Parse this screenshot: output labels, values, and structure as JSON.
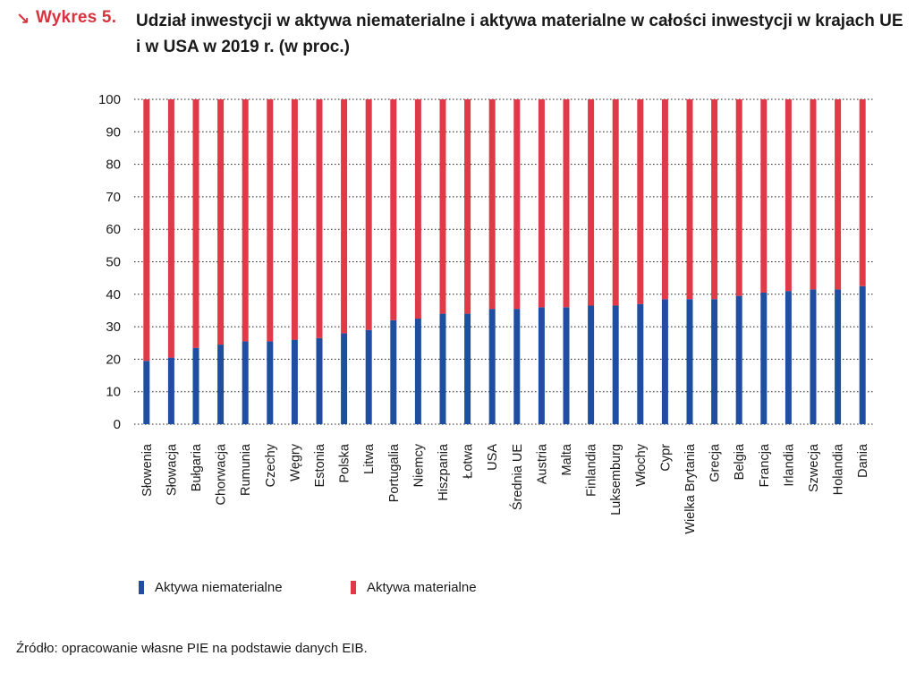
{
  "header": {
    "arrow": "↘",
    "label": "Wykres 5.",
    "title": "Udział inwestycji w aktywa niematerialne i aktywa materialne w całości inwestycji w krajach UE i w USA w 2019 r. (w proc.)"
  },
  "colors": {
    "intangible": "#1f4ea1",
    "tangible": "#e03a48",
    "accent": "#d7343f",
    "grid": "#1a1a1a"
  },
  "chart_data": {
    "type": "bar",
    "stacked": true,
    "title": "Udział inwestycji w aktywa niematerialne i aktywa materialne w całości inwestycji w krajach UE i w USA w 2019 r. (w proc.)",
    "xlabel": "",
    "ylabel": "",
    "ylim": [
      0,
      100
    ],
    "yticks": [
      "0",
      "10",
      "20",
      "30",
      "40",
      "50",
      "60",
      "70",
      "80",
      "90",
      "100"
    ],
    "grid": true,
    "legend_position": "bottom-left",
    "categories": [
      "Słowenia",
      "Słowacja",
      "Bułgaria",
      "Chorwacja",
      "Rumunia",
      "Czechy",
      "Węgry",
      "Estonia",
      "Polska",
      "Litwa",
      "Portugalia",
      "Niemcy",
      "Hiszpania",
      "Łotwa",
      "USA",
      "Średnia UE",
      "Austria",
      "Malta",
      "Finlandia",
      "Luksemburg",
      "Włochy",
      "Cypr",
      "Wielka Brytania",
      "Grecja",
      "Belgia",
      "Francja",
      "Irlandia",
      "Szwecja",
      "Holandia",
      "Dania"
    ],
    "series": [
      {
        "name": "Aktywa niematerialne",
        "values": [
          19.5,
          20.5,
          23.5,
          24.5,
          25.5,
          25.5,
          26,
          26.5,
          28,
          29,
          32,
          32.5,
          34,
          34,
          35.5,
          35.5,
          36,
          36,
          36.5,
          36.5,
          37,
          38.5,
          38.5,
          38.5,
          39.5,
          40.5,
          41,
          41.5,
          41.5,
          42.5
        ]
      },
      {
        "name": "Aktywa materialne",
        "values": [
          80.5,
          79.5,
          76.5,
          75.5,
          74.5,
          74.5,
          74,
          73.5,
          72,
          71,
          68,
          67.5,
          66,
          66,
          64.5,
          64.5,
          64,
          64,
          63.5,
          63.5,
          63,
          61.5,
          61.5,
          61.5,
          60.5,
          59.5,
          59,
          58.5,
          58.5,
          57.5
        ]
      }
    ]
  },
  "legend": {
    "intangible": "Aktywa niematerialne",
    "tangible": "Aktywa materialne"
  },
  "source": "Źródło: opracowanie własne PIE na podstawie danych EIB."
}
